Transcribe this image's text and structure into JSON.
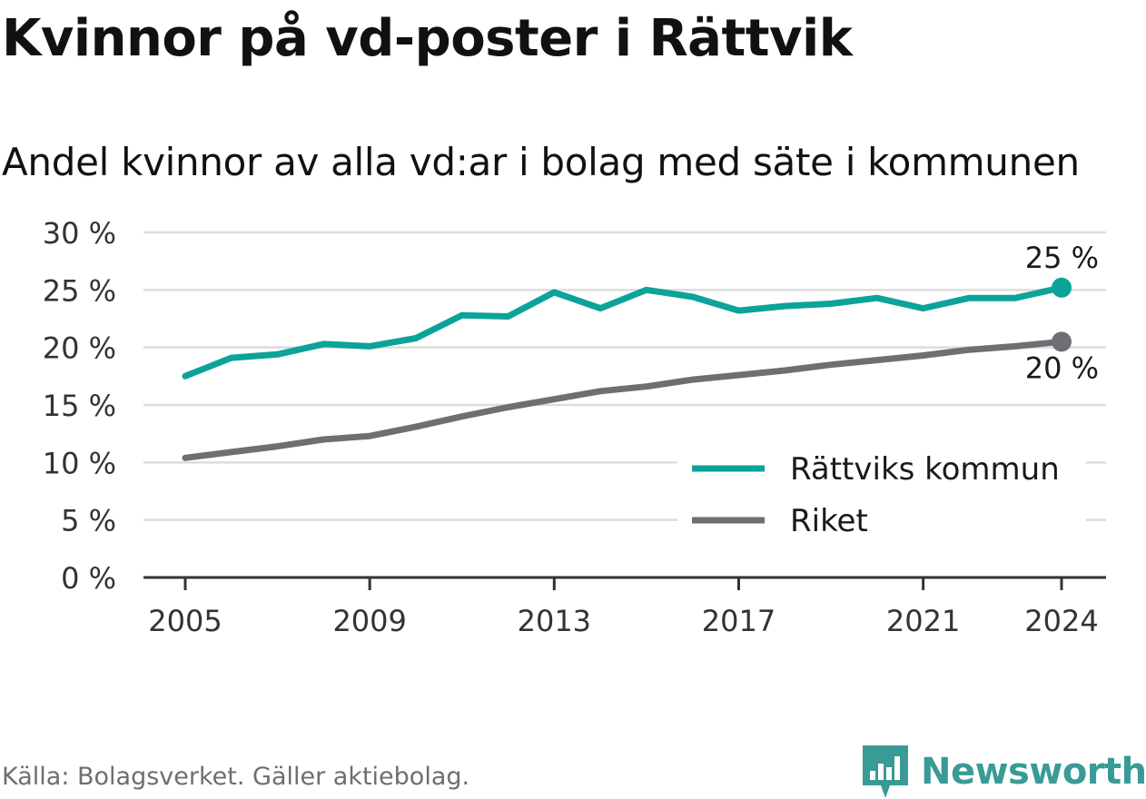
{
  "title": "Kvinnor på vd-poster i Rättvik",
  "subtitle": "Andel kvinnor av alla vd:ar i bolag med säte i kommunen",
  "source": "Källa: Bolagsverket. Gäller aktiebolag.",
  "brand": "Newsworthy",
  "colors": {
    "rattvik": "#0ba39a",
    "riket": "#6e6e74",
    "grid": "#dddddd",
    "axis": "#333333"
  },
  "chart_data": {
    "type": "line",
    "x": [
      2005,
      2006,
      2007,
      2008,
      2009,
      2010,
      2011,
      2012,
      2013,
      2014,
      2015,
      2016,
      2017,
      2018,
      2019,
      2020,
      2021,
      2022,
      2023,
      2024
    ],
    "series": [
      {
        "name": "Rättviks kommun",
        "values": [
          17.5,
          19.1,
          19.4,
          20.3,
          20.1,
          20.8,
          22.8,
          22.7,
          24.8,
          23.4,
          25.0,
          24.4,
          23.2,
          23.6,
          23.8,
          24.3,
          23.4,
          24.3,
          24.3,
          25.2
        ],
        "end_label": "25 %"
      },
      {
        "name": "Riket",
        "values": [
          10.4,
          10.9,
          11.4,
          12.0,
          12.3,
          13.1,
          14.0,
          14.8,
          15.5,
          16.2,
          16.6,
          17.2,
          17.6,
          18.0,
          18.5,
          18.9,
          19.3,
          19.8,
          20.1,
          20.5
        ],
        "end_label": "20 %"
      }
    ],
    "x_ticks": [
      2005,
      2009,
      2013,
      2017,
      2021,
      2024
    ],
    "y_ticks": [
      0,
      5,
      10,
      15,
      20,
      25,
      30
    ],
    "y_tick_labels": [
      "0 %",
      "5 %",
      "10 %",
      "15 %",
      "20 %",
      "25 %",
      "30 %"
    ],
    "ylim": [
      0,
      30
    ],
    "xlim": [
      2005,
      2024
    ],
    "grid": true,
    "legend_position": "bottom-right"
  }
}
